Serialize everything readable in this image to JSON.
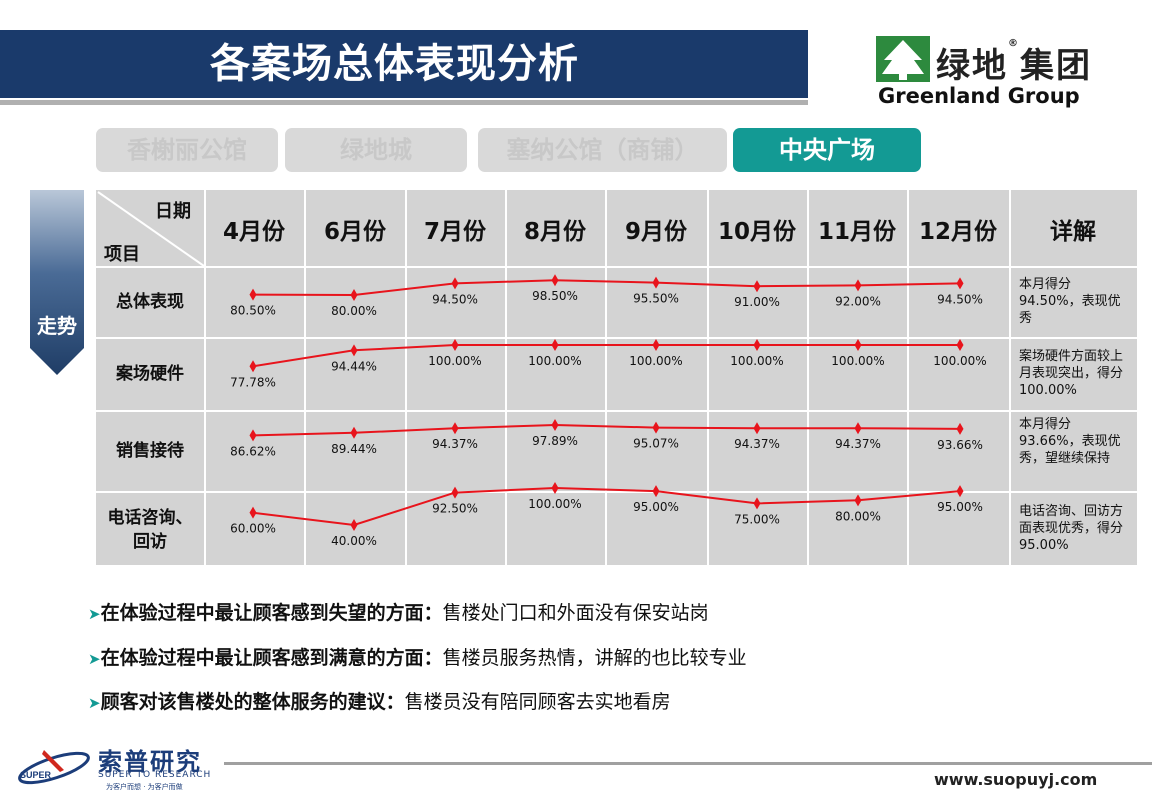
{
  "header": {
    "title": "各案场总体表现分析"
  },
  "logo": {
    "zh": "绿地",
    "registered": "®",
    "zh2": "集团",
    "en": "Greenland Group"
  },
  "tabs": [
    {
      "label": "香榭丽公馆",
      "active": false
    },
    {
      "label": "绿地城",
      "active": false
    },
    {
      "label": "塞纳公馆（商铺）",
      "active": false
    },
    {
      "label": "中央广场",
      "active": true
    }
  ],
  "side_label": "走势",
  "table": {
    "corner_date": "日期",
    "corner_item": "项目",
    "detail_header": "详解",
    "months": [
      "4月份",
      "6月份",
      "7月份",
      "8月份",
      "9月份",
      "10月份",
      "11月份",
      "12月份"
    ],
    "rows": [
      {
        "label": "总体表现",
        "detail": "本月得分94.50%，表现优秀"
      },
      {
        "label": "案场硬件",
        "detail": "案场硬件方面较上月表现突出，得分100.00%"
      },
      {
        "label": "销售接待",
        "detail": "本月得分93.66%，表现优秀，望继续保持"
      },
      {
        "label": "电话咨询、回访",
        "detail": "电话咨询、回访方面表现优秀，得分95.00%"
      }
    ]
  },
  "chart_data": {
    "type": "line",
    "categories": [
      "4月份",
      "6月份",
      "7月份",
      "8月份",
      "9月份",
      "10月份",
      "11月份",
      "12月份"
    ],
    "series": [
      {
        "name": "总体表现",
        "values": [
          80.5,
          80.0,
          94.5,
          98.5,
          95.5,
          91.0,
          92.0,
          94.5
        ],
        "labels": [
          "80.50%",
          "80.00%",
          "94.50%",
          "98.50%",
          "95.50%",
          "91.00%",
          "92.00%",
          "94.50%"
        ]
      },
      {
        "name": "案场硬件",
        "values": [
          77.78,
          94.44,
          100.0,
          100.0,
          100.0,
          100.0,
          100.0,
          100.0
        ],
        "labels": [
          "77.78%",
          "94.44%",
          "100.00%",
          "100.00%",
          "100.00%",
          "100.00%",
          "100.00%",
          "100.00%"
        ]
      },
      {
        "name": "销售接待",
        "values": [
          86.62,
          89.44,
          94.37,
          97.89,
          95.07,
          94.37,
          94.37,
          93.66
        ],
        "labels": [
          "86.62%",
          "89.44%",
          "94.37%",
          "97.89%",
          "95.07%",
          "94.37%",
          "94.37%",
          "93.66%"
        ]
      },
      {
        "name": "电话咨询、回访",
        "values": [
          60.0,
          40.0,
          92.5,
          100.0,
          95.0,
          75.0,
          80.0,
          95.0
        ],
        "labels": [
          "60.00%",
          "40.00%",
          "92.50%",
          "100.00%",
          "95.00%",
          "75.00%",
          "80.00%",
          "95.00%"
        ]
      }
    ],
    "line_color": "#e8141c"
  },
  "bullets": [
    {
      "label": "在体验过程中最让顾客感到失望的方面：",
      "text": "售楼处门口和外面没有保安站岗"
    },
    {
      "label": "在体验过程中最让顾客感到满意的方面：",
      "text": "售楼员服务热情，讲解的也比较专业"
    },
    {
      "label": "顾客对该售楼处的整体服务的建议：",
      "text": "售楼员没有陪同顾客去实地看房"
    }
  ],
  "footer": {
    "company": "索普研究",
    "company_en": "SUPER TO RESEARCH",
    "slogan": "为客户而想 · 为客户而做",
    "badge": "SUPER",
    "url": "www.suopuyj.com"
  },
  "colors": {
    "title_bg": "#1a3a6b",
    "tab_active": "#139a94",
    "tab_inactive": "#d9d9d9",
    "table_bg": "#d3d3d3",
    "green": "#2d8a3e"
  }
}
